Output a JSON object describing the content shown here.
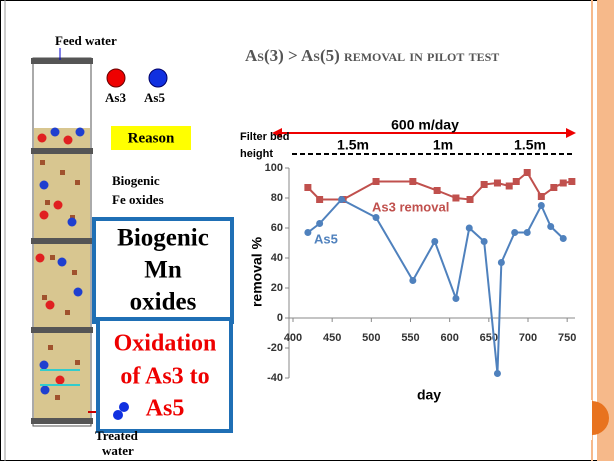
{
  "slide": {
    "title": "As(3) > As(5) removal in pilot test",
    "feed": "Feed  water",
    "as3_legend": "As3",
    "as5_legend": "As5",
    "reason": "Reason",
    "fe_oxides": [
      "Biogenic",
      "Fe oxides"
    ],
    "mn_oxides": [
      "Biogenic",
      "Mn",
      "oxides"
    ],
    "oxidation": [
      "Oxidation",
      "of As3 to",
      "As5"
    ],
    "treated": [
      "Treated",
      "water"
    ]
  },
  "chart_data": {
    "type": "line",
    "x_label": "day",
    "y_label": "removal %",
    "annotations": {
      "filter_bed": [
        "Filter bed",
        "height"
      ],
      "rate": "600 m/day",
      "seg1": "1.5m",
      "seg2": "1m",
      "seg3": "1.5m"
    },
    "xlim": [
      400,
      760
    ],
    "ylim": [
      -40,
      100
    ],
    "xticks": [
      400,
      450,
      500,
      550,
      600,
      650,
      700,
      750
    ],
    "yticks": [
      -40,
      -20,
      0,
      20,
      40,
      60,
      80,
      100
    ],
    "series": [
      {
        "name": "As3 removal",
        "color": "#c0504d",
        "marker": "square",
        "x": [
          419,
          434,
          464,
          506,
          553,
          584,
          608,
          626,
          644,
          661,
          676,
          685,
          699,
          717,
          733,
          745,
          756
        ],
        "values": [
          87,
          79,
          79,
          91,
          91,
          85,
          80,
          79,
          89,
          90,
          88,
          91,
          97,
          81,
          87,
          90,
          91
        ]
      },
      {
        "name": "As5",
        "color": "#4f81bd",
        "marker": "circle",
        "x": [
          419,
          434,
          462,
          506,
          553,
          581,
          608,
          625,
          644,
          661,
          666,
          683,
          699,
          717,
          729,
          745
        ],
        "values": [
          57,
          63,
          79,
          67,
          25,
          51,
          13,
          60,
          51,
          -37,
          37,
          57,
          57,
          75,
          61,
          53
        ]
      }
    ]
  }
}
